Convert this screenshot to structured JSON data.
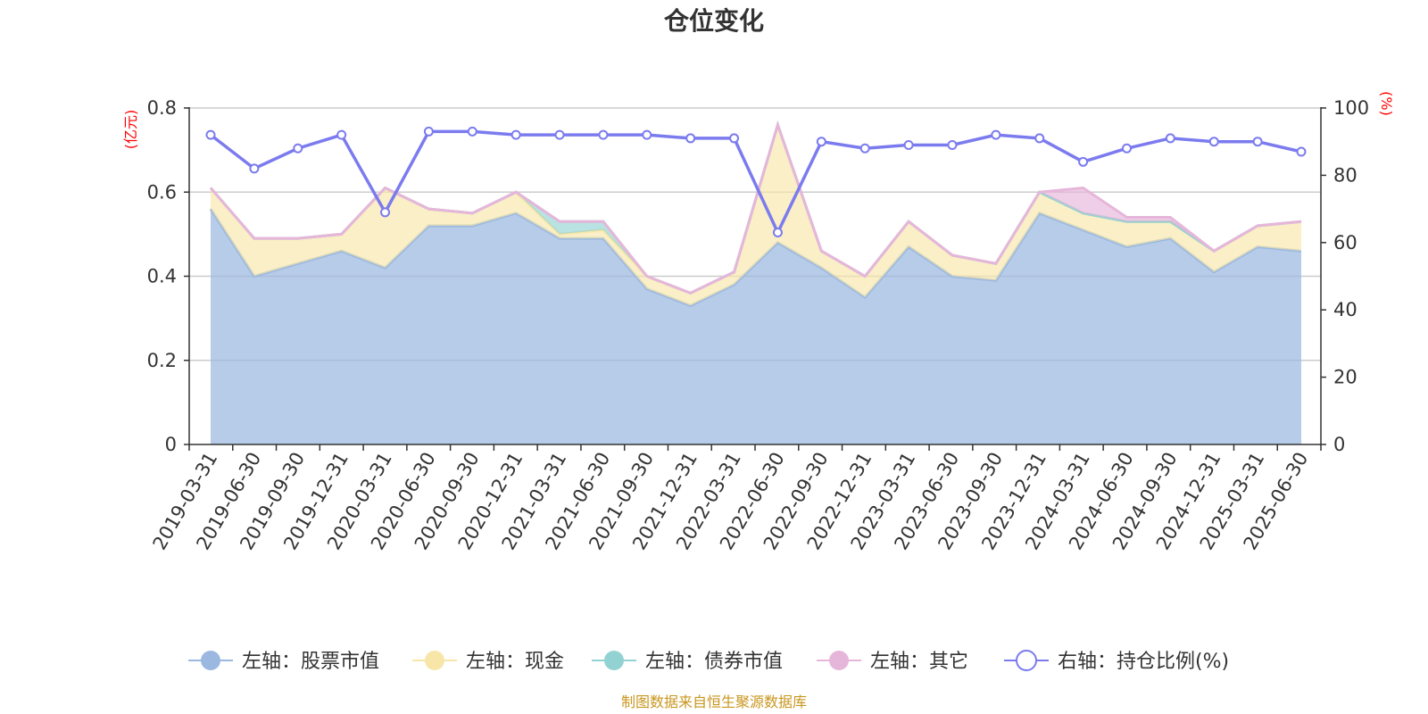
{
  "chart_data": {
    "type": "area",
    "title": "仓位变化",
    "left_axis": {
      "unit": "(亿元)",
      "range": [
        0,
        0.8
      ],
      "ticks": [
        "0",
        "0.2",
        "0.4",
        "0.6",
        "0.8"
      ]
    },
    "right_axis": {
      "unit": "(%)",
      "range": [
        0,
        100
      ],
      "ticks": [
        "0",
        "20",
        "40",
        "60",
        "80",
        "100"
      ]
    },
    "grid": true,
    "legend_position": "bottom",
    "categories": [
      "2019-03-31",
      "2019-06-30",
      "2019-09-30",
      "2019-12-31",
      "2020-03-31",
      "2020-06-30",
      "2020-09-30",
      "2020-12-31",
      "2021-03-31",
      "2021-06-30",
      "2021-09-30",
      "2021-12-31",
      "2022-03-31",
      "2022-06-30",
      "2022-09-30",
      "2022-12-31",
      "2023-03-31",
      "2023-06-30",
      "2023-09-30",
      "2023-12-31",
      "2024-03-31",
      "2024-06-30",
      "2024-09-30",
      "2024-12-31",
      "2025-03-31",
      "2025-06-30"
    ],
    "series": [
      {
        "name": "左轴：股票市值",
        "axis": "left",
        "type": "area",
        "color": "#9bb8e0",
        "values": [
          0.56,
          0.4,
          0.43,
          0.46,
          0.42,
          0.52,
          0.52,
          0.55,
          0.49,
          0.49,
          0.37,
          0.33,
          0.38,
          0.48,
          0.42,
          0.35,
          0.47,
          0.4,
          0.39,
          0.55,
          0.51,
          0.47,
          0.49,
          0.41,
          0.47,
          0.46
        ]
      },
      {
        "name": "左轴：现金",
        "axis": "left",
        "type": "area",
        "color": "#f8e6a8",
        "values": [
          0.05,
          0.09,
          0.06,
          0.04,
          0.19,
          0.04,
          0.03,
          0.05,
          0.01,
          0.02,
          0.03,
          0.03,
          0.03,
          0.28,
          0.04,
          0.05,
          0.06,
          0.05,
          0.04,
          0.05,
          0.04,
          0.06,
          0.04,
          0.05,
          0.05,
          0.07
        ]
      },
      {
        "name": "左轴：债券市值",
        "axis": "left",
        "type": "area",
        "color": "#93d2d2",
        "values": [
          0,
          0,
          0,
          0,
          0,
          0,
          0,
          0,
          0.03,
          0.02,
          0,
          0,
          0,
          0,
          0,
          0,
          0,
          0,
          0,
          0,
          0,
          0,
          0,
          0,
          0,
          0
        ]
      },
      {
        "name": "左轴：其它",
        "axis": "left",
        "type": "area",
        "color": "#e6b6da",
        "values": [
          0,
          0,
          0,
          0,
          0,
          0,
          0,
          0,
          0,
          0,
          0,
          0,
          0,
          0,
          0,
          0,
          0,
          0,
          0,
          0,
          0.06,
          0.01,
          0.01,
          0,
          0,
          0
        ]
      },
      {
        "name": "右轴：持仓比例(%)",
        "axis": "right",
        "type": "line",
        "color": "#7b7bef",
        "values": [
          92,
          82,
          88,
          92,
          69,
          93,
          93,
          92,
          92,
          92,
          92,
          91,
          91,
          63,
          90,
          88,
          89,
          89,
          92,
          91,
          84,
          88,
          91,
          90,
          90,
          87
        ]
      }
    ]
  },
  "footer": {
    "source": "制图数据来自恒生聚源数据库"
  }
}
